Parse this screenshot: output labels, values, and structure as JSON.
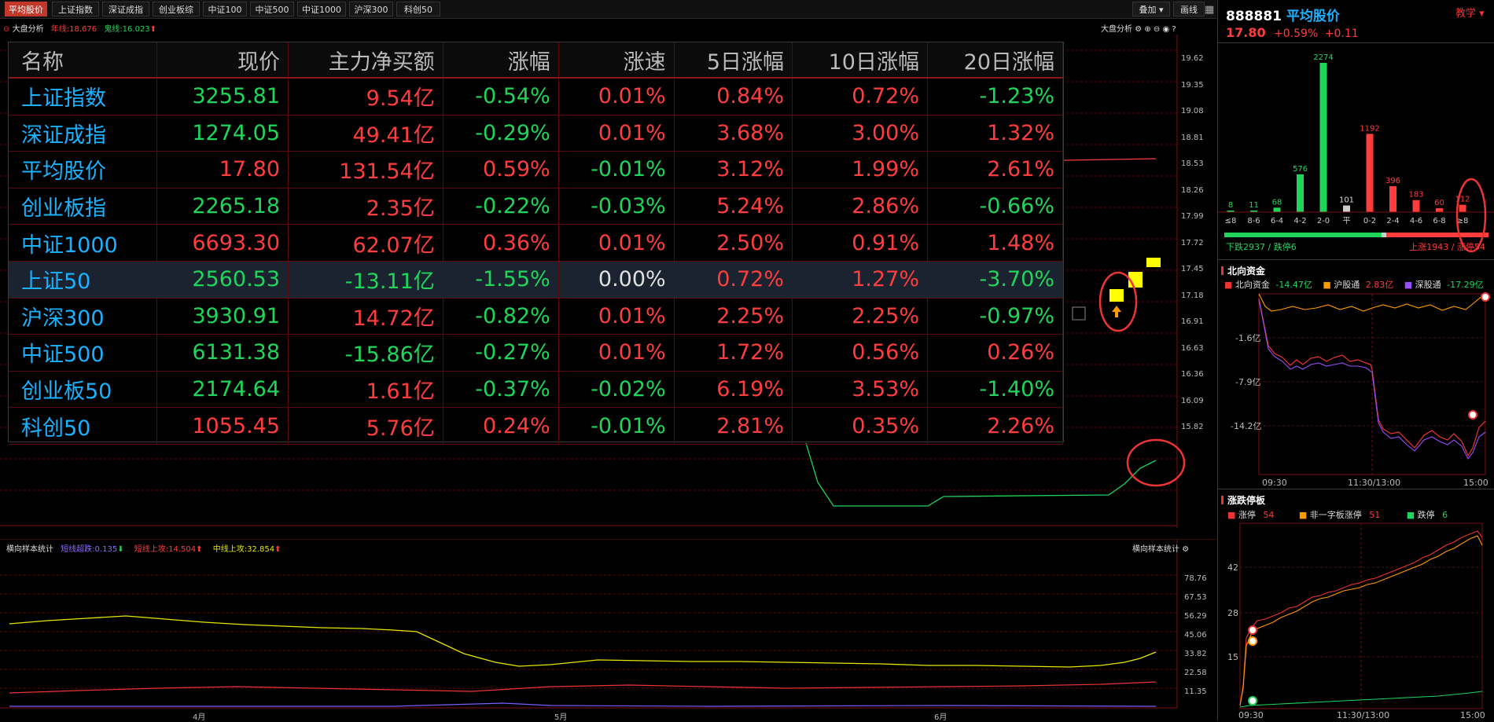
{
  "tabs": [
    "平均股价",
    "上证指数",
    "深证成指",
    "创业板综",
    "中证100",
    "中证500",
    "中证1000",
    "沪深300",
    "科创50"
  ],
  "toolbar": {
    "overlay_label": "叠加",
    "draw_label": "画线"
  },
  "main_chart": {
    "title": "大盘分析",
    "ma_year": "年线:18.676",
    "ma_half": "鬼线:16.023",
    "right_title": "大盘分析",
    "yticks": [
      "19.62",
      "19.35",
      "19.08",
      "18.81",
      "18.53",
      "18.26",
      "17.99",
      "17.72",
      "17.45",
      "17.18",
      "16.91",
      "16.63",
      "16.36",
      "16.09",
      "15.82"
    ]
  },
  "table": {
    "headers": [
      "名称",
      "现价",
      "主力净买额",
      "涨幅",
      "涨速",
      "5日涨幅",
      "10日涨幅",
      "20日涨幅"
    ],
    "rows": [
      {
        "name": "上证指数",
        "price": "3255.81",
        "flow": "9.54亿",
        "chg": "-0.54%",
        "speed": "0.01%",
        "d5": "0.84%",
        "d10": "0.72%",
        "d20": "-1.23%"
      },
      {
        "name": "深证成指",
        "price": "1274.05",
        "flow": "49.41亿",
        "chg": "-0.29%",
        "speed": "0.01%",
        "d5": "3.68%",
        "d10": "3.00%",
        "d20": "1.32%"
      },
      {
        "name": "平均股价",
        "price": "17.80",
        "flow": "131.54亿",
        "chg": "0.59%",
        "speed": "-0.01%",
        "d5": "3.12%",
        "d10": "1.99%",
        "d20": "2.61%"
      },
      {
        "name": "创业板指",
        "price": "2265.18",
        "flow": "2.35亿",
        "chg": "-0.22%",
        "speed": "-0.03%",
        "d5": "5.24%",
        "d10": "2.86%",
        "d20": "-0.66%"
      },
      {
        "name": "中证1000",
        "price": "6693.30",
        "flow": "62.07亿",
        "chg": "0.36%",
        "speed": "0.01%",
        "d5": "2.50%",
        "d10": "0.91%",
        "d20": "1.48%"
      },
      {
        "name": "上证50",
        "price": "2560.53",
        "flow": "-13.11亿",
        "chg": "-1.55%",
        "speed": "0.00%",
        "d5": "0.72%",
        "d10": "1.27%",
        "d20": "-3.70%"
      },
      {
        "name": "沪深300",
        "price": "3930.91",
        "flow": "14.72亿",
        "chg": "-0.82%",
        "speed": "0.01%",
        "d5": "2.25%",
        "d10": "2.25%",
        "d20": "-0.97%"
      },
      {
        "name": "中证500",
        "price": "6131.38",
        "flow": "-15.86亿",
        "chg": "-0.27%",
        "speed": "0.01%",
        "d5": "1.72%",
        "d10": "0.56%",
        "d20": "0.26%"
      },
      {
        "name": "创业板50",
        "price": "2174.64",
        "flow": "1.61亿",
        "chg": "-0.37%",
        "speed": "-0.02%",
        "d5": "6.19%",
        "d10": "3.53%",
        "d20": "-1.40%"
      },
      {
        "name": "科创50",
        "price": "1055.45",
        "flow": "5.76亿",
        "chg": "0.24%",
        "speed": "-0.01%",
        "d5": "2.81%",
        "d10": "0.35%",
        "d20": "2.26%"
      }
    ]
  },
  "sub_chart": {
    "title": "横向样本统计",
    "short_down": "短线超跌:0.135",
    "short_up": "短线上攻:14.504",
    "mid_up": "中线上攻:32.854",
    "right_title": "横向样本统计",
    "yticks": [
      "78.76",
      "67.53",
      "56.29",
      "45.06",
      "33.82",
      "22.58",
      "11.35"
    ],
    "xticks": [
      "4月",
      "5月",
      "6月"
    ]
  },
  "quote": {
    "code": "888881",
    "name": "平均股价",
    "price": "17.80",
    "change": "+0.59%",
    "change_abs": "+0.11",
    "teach": "教学"
  },
  "dist": {
    "labels": [
      "≤8",
      "8-6",
      "6-4",
      "4-2",
      "2-0",
      "平",
      "0-2",
      "2-4",
      "4-6",
      "6-8",
      "≥8"
    ],
    "values": [
      8,
      11,
      68,
      576,
      2274,
      101,
      1192,
      396,
      183,
      60,
      112
    ],
    "down_text": "下跌2937 / 跌停6",
    "up_text": "上涨1943 / 涨停54"
  },
  "north": {
    "title": "北向资金",
    "legend": [
      {
        "label": "北向资金",
        "value": "-14.47亿"
      },
      {
        "label": "沪股通",
        "value": "2.83亿"
      },
      {
        "label": "深股通",
        "value": "-17.29亿"
      }
    ],
    "yticks": [
      "-1.6亿",
      "-7.9亿",
      "-14.2亿"
    ],
    "xticks": [
      "09:30",
      "11:30/13:00",
      "15:00"
    ]
  },
  "limit": {
    "title": "涨跌停板",
    "legend": [
      {
        "label": "涨停",
        "value": "54"
      },
      {
        "label": "非一字板涨停",
        "value": "51"
      },
      {
        "label": "跌停",
        "value": "6"
      }
    ],
    "yticks": [
      "42",
      "28",
      "15"
    ],
    "xticks": [
      "09:30",
      "11:30/13:00",
      "15:00"
    ]
  },
  "colors": {
    "up": "#ff3d3d",
    "down": "#1fd65a",
    "accent": "#1ab2ff",
    "ma_year": "#ff3d3d",
    "ma_half": "#1fd65a"
  }
}
